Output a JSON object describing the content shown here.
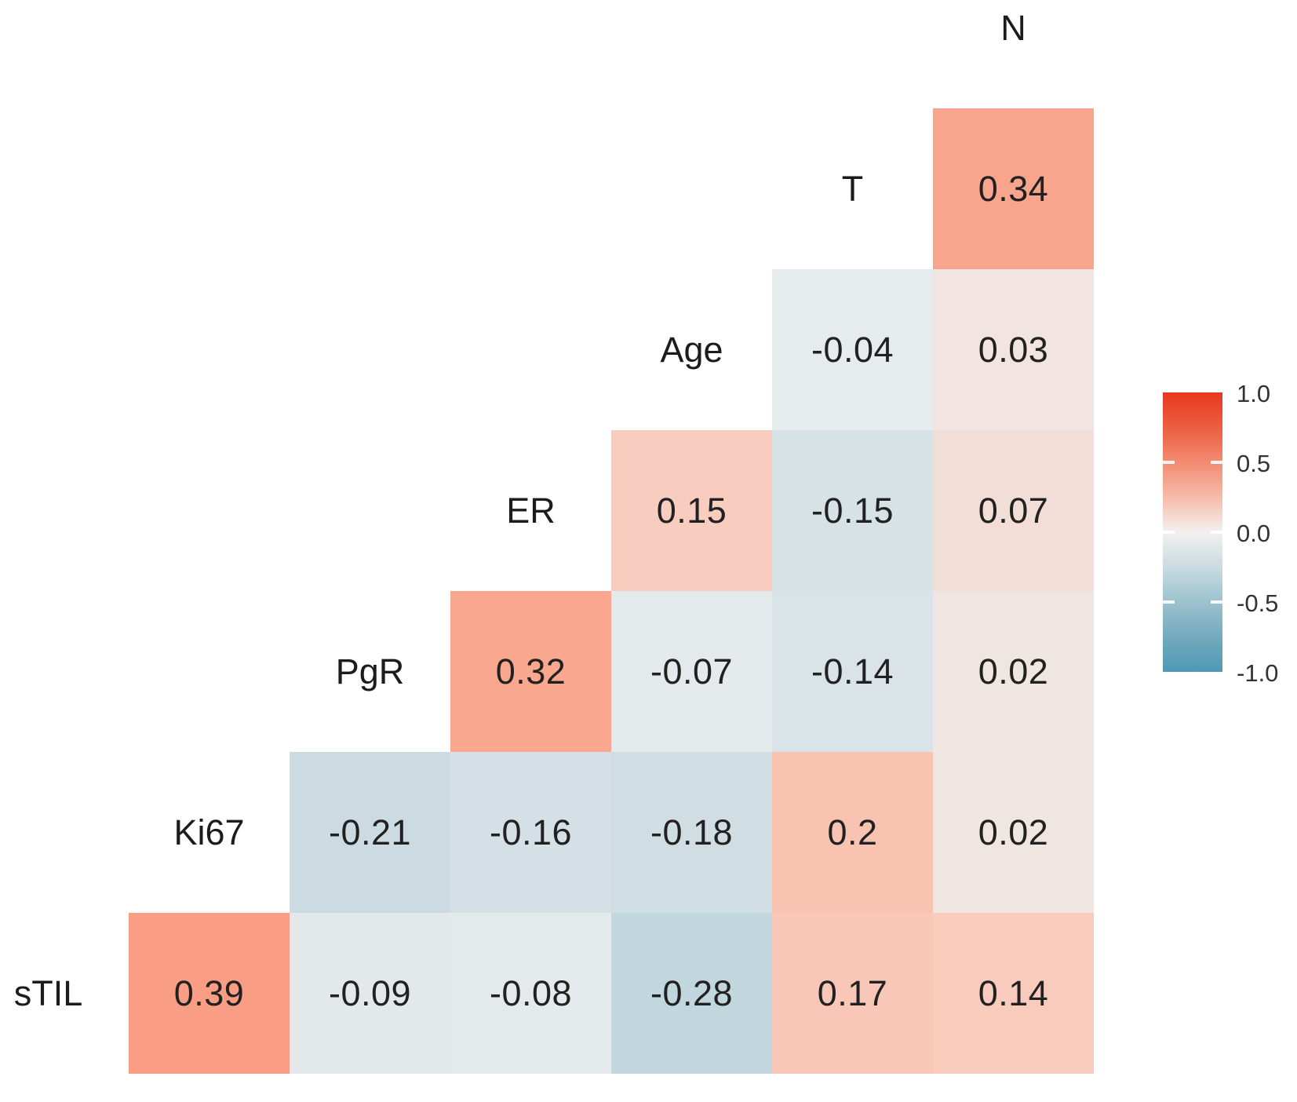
{
  "chart_data": {
    "type": "heatmap",
    "subtype": "correlation-matrix-lower-triangle",
    "title": "",
    "variables": [
      "N",
      "T",
      "Age",
      "ER",
      "PgR",
      "Ki67",
      "sTIL"
    ],
    "cells": [
      {
        "row": "T",
        "col": "N",
        "value": 0.34,
        "label": "0.34",
        "color": "#F9A58D"
      },
      {
        "row": "Age",
        "col": "T",
        "value": -0.04,
        "label": "-0.04",
        "color": "#E6EBED"
      },
      {
        "row": "Age",
        "col": "N",
        "value": 0.03,
        "label": "0.03",
        "color": "#F2E4E0"
      },
      {
        "row": "ER",
        "col": "Age",
        "value": 0.15,
        "label": "0.15",
        "color": "#F8CCBE"
      },
      {
        "row": "ER",
        "col": "T",
        "value": -0.15,
        "label": "-0.15",
        "color": "#D7E2E7"
      },
      {
        "row": "ER",
        "col": "N",
        "value": 0.07,
        "label": "0.07",
        "color": "#F3DED7"
      },
      {
        "row": "PgR",
        "col": "ER",
        "value": 0.32,
        "label": "0.32",
        "color": "#F9A78F"
      },
      {
        "row": "PgR",
        "col": "Age",
        "value": -0.07,
        "label": "-0.07",
        "color": "#E4EAEC"
      },
      {
        "row": "PgR",
        "col": "T",
        "value": -0.14,
        "label": "-0.14",
        "color": "#D9E3E8"
      },
      {
        "row": "PgR",
        "col": "N",
        "value": 0.02,
        "label": "0.02",
        "color": "#EFE6E2"
      },
      {
        "row": "Ki67",
        "col": "PgR",
        "value": -0.21,
        "label": "-0.21",
        "color": "#CCDBE2"
      },
      {
        "row": "Ki67",
        "col": "ER",
        "value": -0.16,
        "label": "-0.16",
        "color": "#D4E0E5"
      },
      {
        "row": "Ki67",
        "col": "Age",
        "value": -0.18,
        "label": "-0.18",
        "color": "#D0DEE4"
      },
      {
        "row": "Ki67",
        "col": "T",
        "value": 0.2,
        "label": "0.2",
        "color": "#F9C3B2"
      },
      {
        "row": "Ki67",
        "col": "N",
        "value": 0.02,
        "label": "0.02",
        "color": "#EFE6E2"
      },
      {
        "row": "sTIL",
        "col": "Ki67",
        "value": 0.39,
        "label": "0.39",
        "color": "#F99E84"
      },
      {
        "row": "sTIL",
        "col": "PgR",
        "value": -0.09,
        "label": "-0.09",
        "color": "#E3E9EB"
      },
      {
        "row": "sTIL",
        "col": "ER",
        "value": -0.08,
        "label": "-0.08",
        "color": "#E4EAEC"
      },
      {
        "row": "sTIL",
        "col": "Age",
        "value": -0.28,
        "label": "-0.28",
        "color": "#C2D6DD"
      },
      {
        "row": "sTIL",
        "col": "T",
        "value": 0.17,
        "label": "0.17",
        "color": "#F8C7B8"
      },
      {
        "row": "sTIL",
        "col": "N",
        "value": 0.14,
        "label": "0.14",
        "color": "#F8CBBC"
      }
    ],
    "legend": {
      "tick_labels": [
        "1.0",
        "0.5",
        "0.0",
        "-0.5",
        "-1.0"
      ],
      "tick_values": [
        1.0,
        0.5,
        0.0,
        -0.5,
        -1.0
      ],
      "color_high": "#E6391E",
      "color_mid": "#F3F0EF",
      "color_low": "#4E99B4",
      "position": "right"
    },
    "value_range": [
      -1.0,
      1.0
    ],
    "grid": false
  }
}
